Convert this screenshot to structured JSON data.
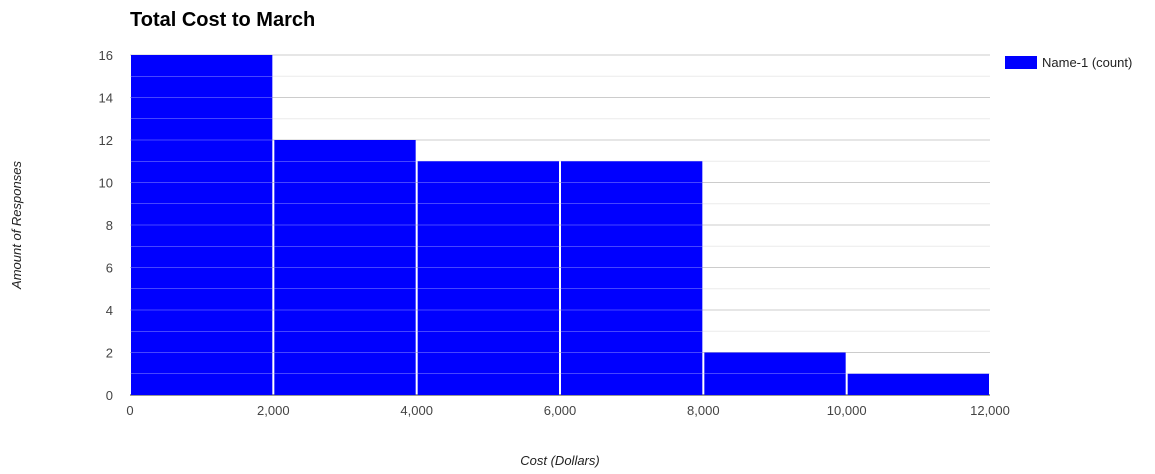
{
  "chart_data": {
    "type": "bar",
    "title": "Total Cost to March",
    "xlabel": "Cost (Dollars)",
    "ylabel": "Amount of Responses",
    "bins": [
      {
        "x0": 0,
        "x1": 2000,
        "count": 16
      },
      {
        "x0": 2000,
        "x1": 4000,
        "count": 12
      },
      {
        "x0": 4000,
        "x1": 6000,
        "count": 11
      },
      {
        "x0": 6000,
        "x1": 8000,
        "count": 11
      },
      {
        "x0": 8000,
        "x1": 10000,
        "count": 2
      },
      {
        "x0": 10000,
        "x1": 12000,
        "count": 1
      }
    ],
    "xticks": [
      0,
      2000,
      4000,
      6000,
      8000,
      10000,
      12000
    ],
    "xtick_labels": [
      "0",
      "2,000",
      "4,000",
      "6,000",
      "8,000",
      "10,000",
      "12,000"
    ],
    "yticks": [
      0,
      2,
      4,
      6,
      8,
      10,
      12,
      14,
      16
    ],
    "xlim": [
      0,
      12000
    ],
    "ylim": [
      0,
      16
    ],
    "series": [
      {
        "name": "Name-1 (count)",
        "color": "#0000ff"
      }
    ],
    "grid": true,
    "minor_gridlines": true,
    "legend_position": "top-right"
  }
}
